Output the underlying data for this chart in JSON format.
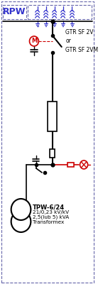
{
  "title": "RPW",
  "bg_color": "#ffffff",
  "border_color": "#6666aa",
  "line_color": "#000000",
  "red_color": "#cc0000",
  "blue_color": "#3333cc",
  "label_gtr": "GTR SF 2V\nor\nGTR SF 2VM",
  "label_tpw": "TPW-6/24",
  "label_tpw2": "21/0,23 kV/kV",
  "label_tpw3": "2,5(lub 5) kVA",
  "label_tpw4": "Transformex",
  "fig_width": 1.45,
  "fig_height": 4.0,
  "dpi": 100
}
